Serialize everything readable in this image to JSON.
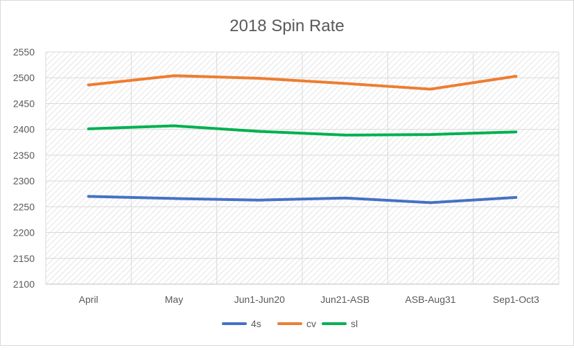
{
  "chart_data": {
    "type": "line",
    "title": "2018 Spin Rate",
    "xlabel": "",
    "ylabel": "",
    "categories": [
      "April",
      "May",
      "Jun1-Jun20",
      "Jun21-ASB",
      "ASB-Aug31",
      "Sep1-Oct3"
    ],
    "ylim": [
      2100,
      2550
    ],
    "yticks": [
      2100,
      2150,
      2200,
      2250,
      2300,
      2350,
      2400,
      2450,
      2500,
      2550
    ],
    "grid": true,
    "legend_position": "bottom",
    "series": [
      {
        "name": "4s",
        "color": "#4472c4",
        "values": [
          2270,
          2266,
          2263,
          2267,
          2258,
          2268
        ]
      },
      {
        "name": "cv",
        "color": "#ed7d31",
        "values": [
          2486,
          2504,
          2499,
          2489,
          2478,
          2503
        ]
      },
      {
        "name": "sl",
        "color": "#00b050",
        "values": [
          2401,
          2407,
          2396,
          2389,
          2390,
          2395
        ]
      }
    ]
  }
}
